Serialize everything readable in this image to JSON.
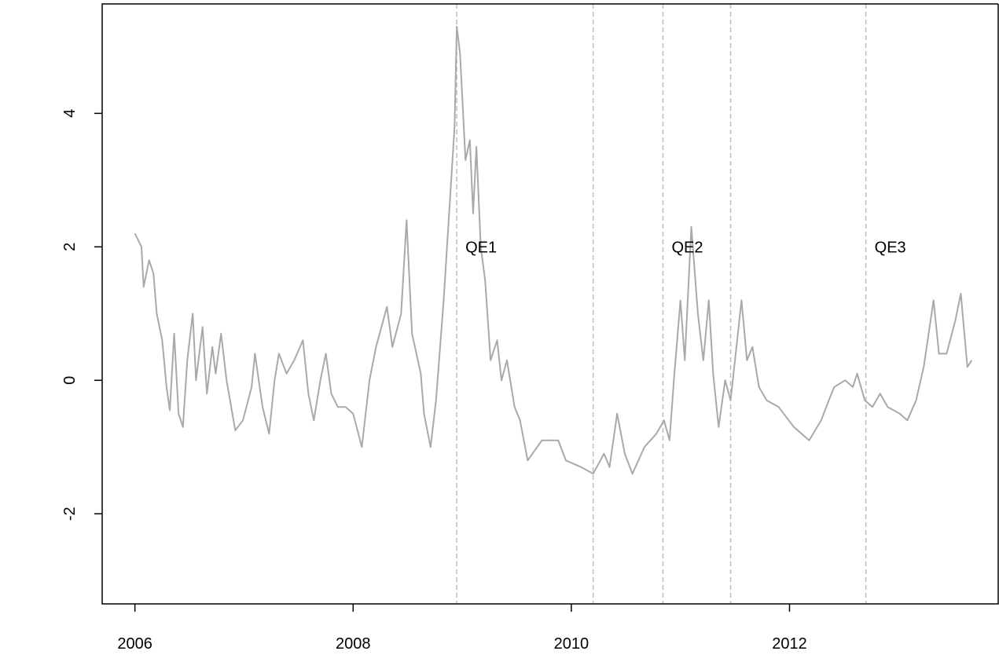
{
  "chart_data": {
    "type": "line",
    "x": [
      2006.0,
      2006.06,
      2006.08,
      2006.13,
      2006.17,
      2006.2,
      2006.25,
      2006.29,
      2006.32,
      2006.36,
      2006.4,
      2006.44,
      2006.48,
      2006.53,
      2006.56,
      2006.62,
      2006.66,
      2006.71,
      2006.74,
      2006.79,
      2006.84,
      2006.92,
      2006.99,
      2007.07,
      2007.1,
      2007.17,
      2007.23,
      2007.28,
      2007.32,
      2007.39,
      2007.46,
      2007.54,
      2007.59,
      2007.64,
      2007.7,
      2007.75,
      2007.8,
      2007.86,
      2007.93,
      2008.0,
      2008.08,
      2008.15,
      2008.21,
      2008.26,
      2008.31,
      2008.36,
      2008.44,
      2008.49,
      2008.54,
      2008.62,
      2008.65,
      2008.71,
      2008.76,
      2008.83,
      2008.88,
      2008.93,
      2008.95,
      2008.98,
      2009.03,
      2009.07,
      2009.1,
      2009.13,
      2009.17,
      2009.21,
      2009.26,
      2009.32,
      2009.36,
      2009.41,
      2009.48,
      2009.53,
      2009.6,
      2009.73,
      2009.88,
      2009.95,
      2010.09,
      2010.2,
      2010.3,
      2010.35,
      2010.42,
      2010.49,
      2010.56,
      2010.67,
      2010.78,
      2010.85,
      2010.9,
      2010.94,
      2011.0,
      2011.04,
      2011.1,
      2011.16,
      2011.21,
      2011.26,
      2011.3,
      2011.35,
      2011.41,
      2011.46,
      2011.5,
      2011.56,
      2011.61,
      2011.66,
      2011.72,
      2011.79,
      2011.9,
      2012.04,
      2012.18,
      2012.29,
      2012.36,
      2012.41,
      2012.51,
      2012.58,
      2012.62,
      2012.69,
      2012.76,
      2012.83,
      2012.9,
      2013.01,
      2013.08,
      2013.16,
      2013.23,
      2013.32,
      2013.37,
      2013.44,
      2013.52,
      2013.57,
      2013.63,
      2013.67
    ],
    "values": [
      2.2,
      2.0,
      1.4,
      1.8,
      1.6,
      1.0,
      0.6,
      -0.1,
      -0.45,
      0.7,
      -0.5,
      -0.7,
      0.3,
      1.0,
      0.0,
      0.8,
      -0.2,
      0.5,
      0.1,
      0.7,
      0.0,
      -0.75,
      -0.6,
      -0.1,
      0.4,
      -0.4,
      -0.8,
      0.0,
      0.4,
      0.1,
      0.3,
      0.6,
      -0.2,
      -0.6,
      0.0,
      0.4,
      -0.2,
      -0.4,
      -0.4,
      -0.5,
      -1.0,
      0.0,
      0.5,
      0.8,
      1.1,
      0.5,
      1.0,
      2.4,
      0.7,
      0.1,
      -0.5,
      -1.0,
      -0.3,
      1.2,
      2.5,
      3.8,
      5.3,
      4.9,
      3.3,
      3.6,
      2.5,
      3.5,
      2.0,
      1.5,
      0.3,
      0.6,
      0.0,
      0.3,
      -0.4,
      -0.6,
      -1.2,
      -0.9,
      -0.9,
      -1.2,
      -1.3,
      -1.4,
      -1.1,
      -1.3,
      -0.5,
      -1.1,
      -1.4,
      -1.0,
      -0.8,
      -0.6,
      -0.9,
      0.0,
      1.2,
      0.3,
      2.3,
      1.0,
      0.3,
      1.2,
      0.1,
      -0.7,
      0.0,
      -0.3,
      0.3,
      1.2,
      0.3,
      0.5,
      -0.1,
      -0.3,
      -0.4,
      -0.7,
      -0.9,
      -0.6,
      -0.3,
      -0.1,
      0.0,
      -0.1,
      0.1,
      -0.3,
      -0.4,
      -0.2,
      -0.4,
      -0.5,
      -0.6,
      -0.3,
      0.2,
      1.2,
      0.4,
      0.4,
      0.9,
      1.3,
      0.2,
      0.3
    ],
    "color": "#a9a9a9",
    "vlines": [
      2008.95,
      2010.2,
      2010.84,
      2011.46,
      2012.7
    ],
    "annotations": [
      {
        "text": "QE1",
        "x": 2008.95,
        "y": 2
      },
      {
        "text": "QE2",
        "x": 2010.84,
        "y": 2
      },
      {
        "text": "QE3",
        "x": 2012.7,
        "y": 2
      }
    ],
    "xlim": [
      2005.7,
      2013.92
    ],
    "xticks": [
      2006,
      2008,
      2010,
      2012
    ],
    "ylim": [
      -3.35,
      5.64
    ],
    "yticks": [
      -2,
      0,
      2,
      4
    ]
  }
}
